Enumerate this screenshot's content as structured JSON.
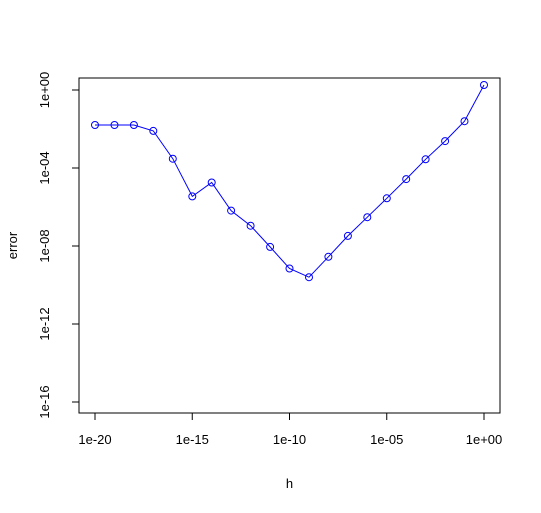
{
  "chart_data": {
    "type": "line",
    "title": "",
    "xlabel": "h",
    "ylabel": "error",
    "x_scale": "log10",
    "y_scale": "log10",
    "x": [
      1e-20,
      1e-19,
      1e-18,
      1e-17,
      1e-16,
      1e-15,
      1e-14,
      1e-13,
      1e-12,
      1e-11,
      1e-10,
      1e-09,
      1e-08,
      1e-07,
      1e-06,
      1e-05,
      0.0001,
      0.001,
      0.01,
      0.1,
      1
    ],
    "series": [
      {
        "name": "",
        "color": "#0000ff",
        "marker": "open-circle",
        "values": [
          0.016,
          0.016,
          0.016,
          0.008,
          0.0003,
          3.5e-06,
          1.8e-05,
          6.5e-07,
          1.1e-07,
          9e-09,
          7e-10,
          2.5e-10,
          2.8e-09,
          3.3e-08,
          3e-07,
          2.8e-06,
          2.7e-05,
          0.00028,
          0.0024,
          0.025,
          1.8
        ]
      }
    ],
    "xlim": [
      1e-20,
      1
    ],
    "ylim": [
      1e-16,
      1
    ],
    "x_ticks": [
      1e-20,
      1e-15,
      1e-10,
      1e-05,
      1
    ],
    "x_tick_labels": [
      "1e-20",
      "1e-15",
      "1e-10",
      "1e-05",
      "1e+00"
    ],
    "y_ticks": [
      1e-16,
      1e-12,
      1e-08,
      0.0001,
      1
    ],
    "y_tick_labels": [
      "1e-16",
      "1e-12",
      "1e-08",
      "1e-04",
      "1e+00"
    ],
    "grid": false,
    "legend": "none"
  }
}
